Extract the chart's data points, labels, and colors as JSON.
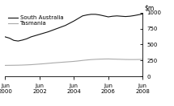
{
  "title": "",
  "ylim": [
    0,
    1000
  ],
  "yticks": [
    0,
    250,
    500,
    750,
    1000
  ],
  "x_labels": [
    "Jun\n2000",
    "Jun\n2002",
    "Jun\n2004",
    "Jun\n2006",
    "Jun\n2008"
  ],
  "sa_color": "#111111",
  "tas_color": "#aaaaaa",
  "legend_sa": "South Australia",
  "legend_tas": "Tasmania",
  "sa_data": {
    "x": [
      0,
      0.25,
      0.5,
      0.75,
      1,
      1.25,
      1.5,
      1.75,
      2,
      2.25,
      2.5,
      2.75,
      3,
      3.25,
      3.5,
      3.75,
      4,
      4.25,
      4.5,
      4.75,
      5,
      5.25,
      5.5,
      5.75,
      6,
      6.25,
      6.5,
      6.75,
      7,
      7.25,
      7.5,
      7.75,
      8
    ],
    "y": [
      620,
      600,
      565,
      555,
      570,
      590,
      620,
      640,
      660,
      680,
      700,
      725,
      750,
      775,
      800,
      835,
      870,
      910,
      950,
      965,
      975,
      975,
      965,
      950,
      935,
      945,
      950,
      945,
      940,
      945,
      955,
      968,
      980
    ]
  },
  "tas_data": {
    "x": [
      0,
      0.25,
      0.5,
      0.75,
      1,
      1.25,
      1.5,
      1.75,
      2,
      2.25,
      2.5,
      2.75,
      3,
      3.25,
      3.5,
      3.75,
      4,
      4.25,
      4.5,
      4.75,
      5,
      5.25,
      5.5,
      5.75,
      6,
      6.25,
      6.5,
      6.75,
      7,
      7.25,
      7.5,
      7.75,
      8
    ],
    "y": [
      172,
      173,
      174,
      175,
      177,
      180,
      183,
      188,
      193,
      198,
      204,
      210,
      215,
      220,
      225,
      230,
      235,
      242,
      250,
      257,
      263,
      267,
      270,
      272,
      273,
      271,
      269,
      267,
      265,
      264,
      264,
      265,
      267
    ]
  },
  "background_color": "#ffffff",
  "figsize": [
    2.15,
    1.32
  ],
  "dpi": 100
}
